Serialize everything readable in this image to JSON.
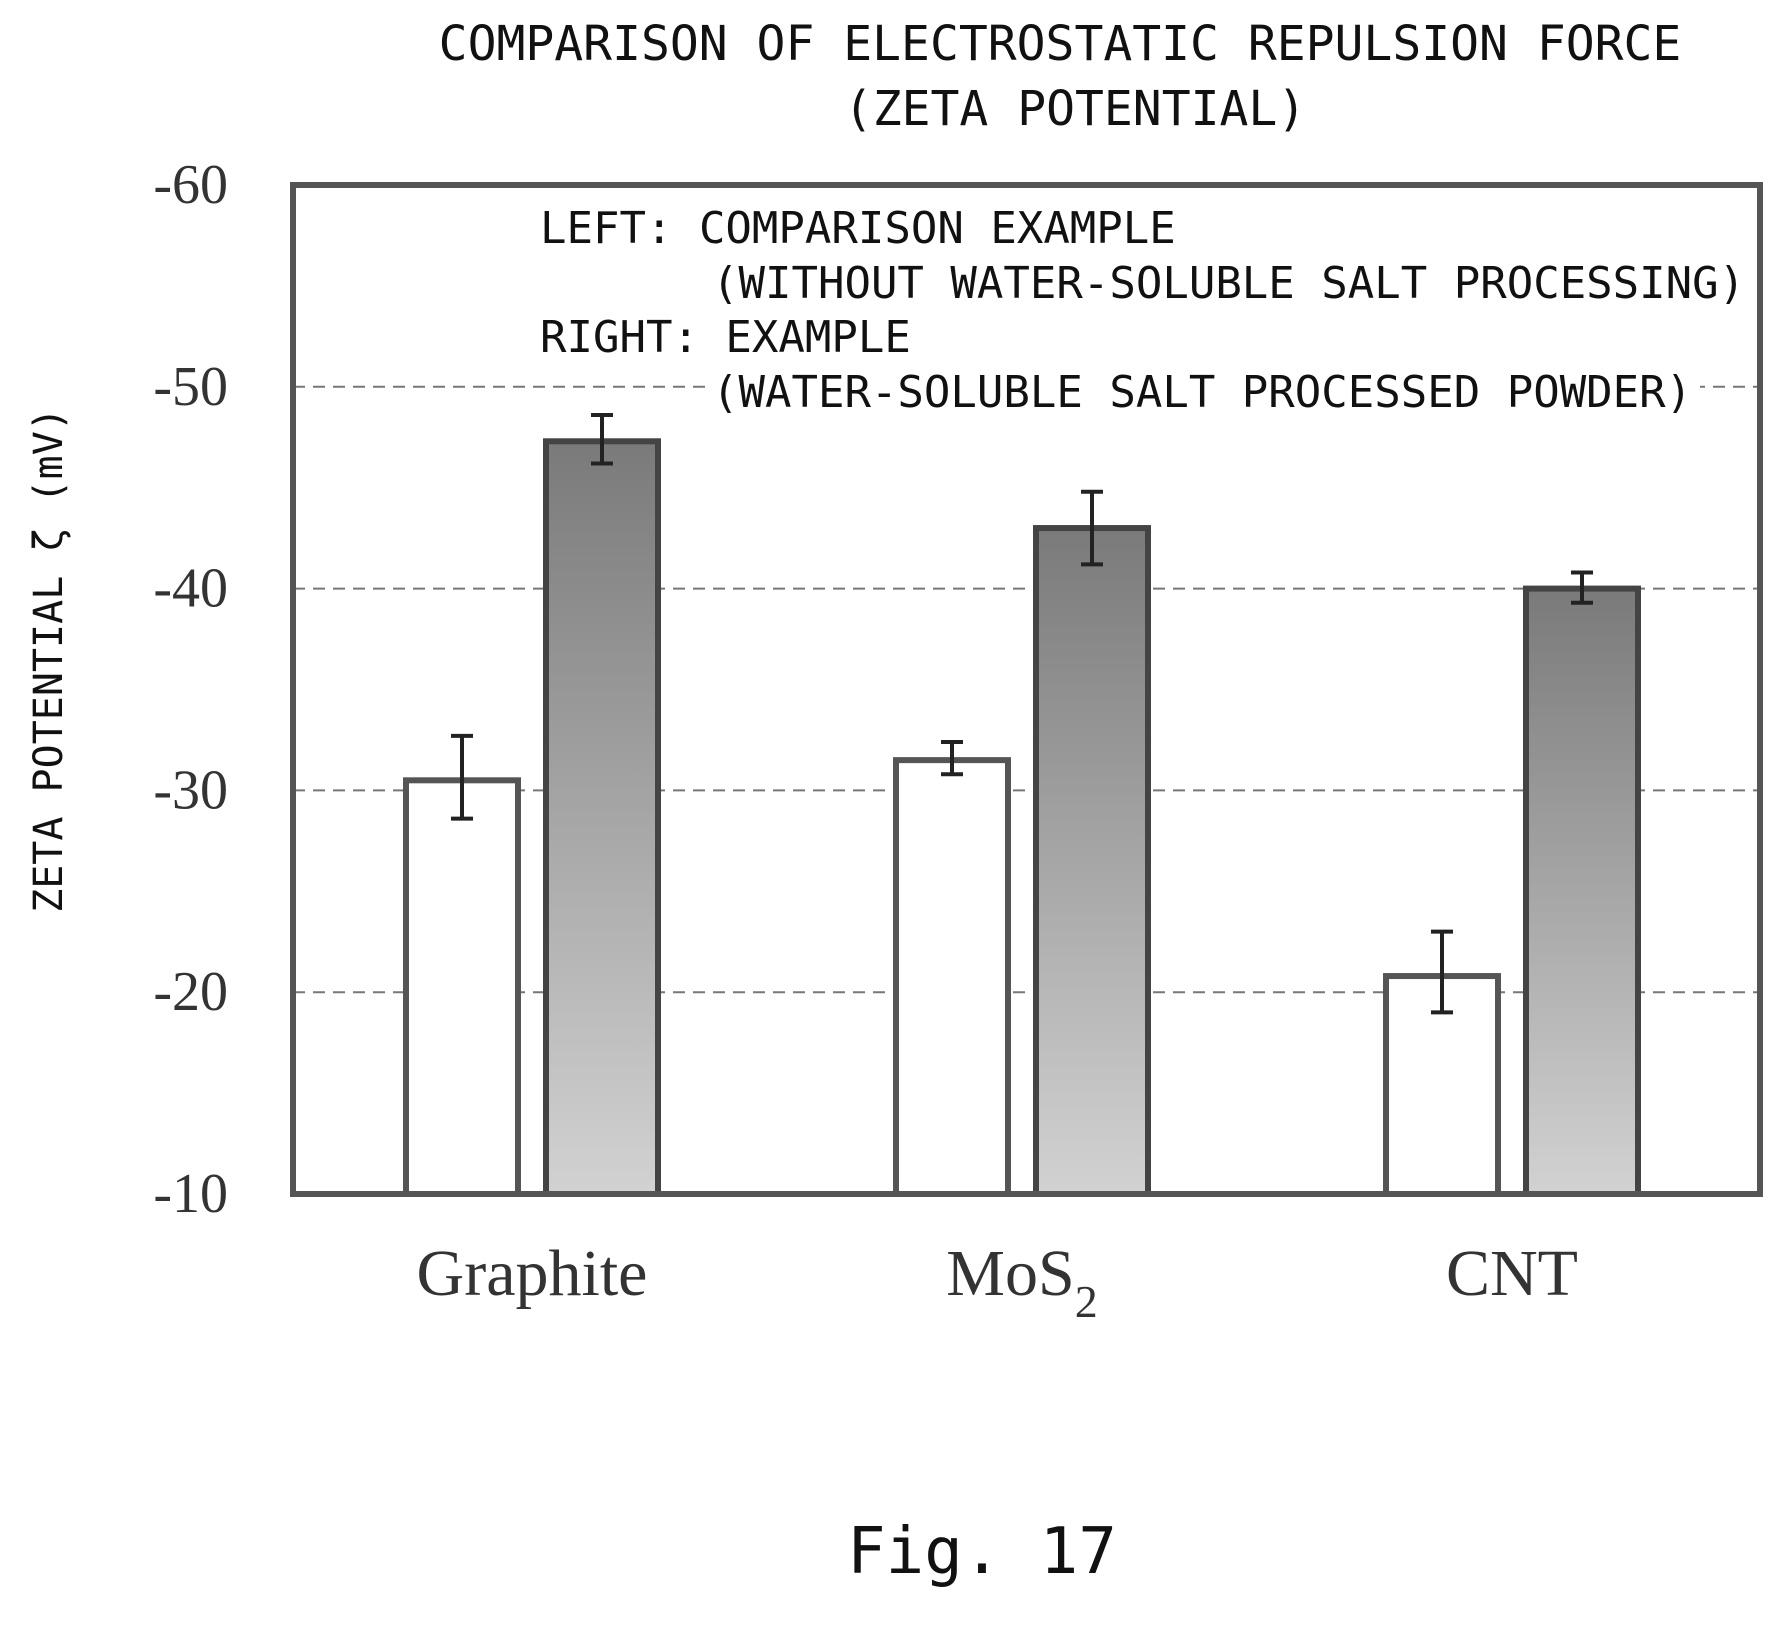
{
  "chart_data": {
    "type": "bar",
    "title": "COMPARISON OF ELECTROSTATIC REPULSION FORCE",
    "subtitle": "(ZETA POTENTIAL)",
    "ylabel": "ZETA POTENTIAL ζ (mV)",
    "xlabel": "",
    "figure_label": "Fig. 17",
    "categories": [
      {
        "text": "Graphite",
        "subscript": ""
      },
      {
        "text": "MoS",
        "subscript": "2"
      },
      {
        "text": "CNT",
        "subscript": ""
      }
    ],
    "ylim": [
      -10,
      -60
    ],
    "yticks": [
      -10,
      -20,
      -30,
      -40,
      -50,
      -60
    ],
    "ytick_labels": [
      "-10",
      "-20",
      "-30",
      "-40",
      "-50",
      "-60"
    ],
    "grid": "horizontal dashed at -20, -30, -40, -50",
    "series": [
      {
        "values": [
          -30.5,
          -31.5,
          -20.8
        ],
        "error_bars": [
          [
            -28.6,
            -32.7
          ],
          [
            -30.8,
            -32.4
          ],
          [
            -19.0,
            -23.0
          ]
        ],
        "fill": "#ffffff",
        "stroke": "#555555"
      },
      {
        "values": [
          -47.3,
          -43.0,
          -40.0
        ],
        "error_bars": [
          [
            -46.2,
            -48.6
          ],
          [
            -41.2,
            -44.8
          ],
          [
            -39.3,
            -40.8
          ]
        ],
        "fill_top": "#7a7a7a",
        "fill_bottom": "#d2d2d2",
        "stroke": "#444444"
      }
    ],
    "legend": {
      "placement": "top",
      "lines": [
        "LEFT: COMPARISON EXAMPLE",
        "(WITHOUT WATER-SOLUBLE SALT PROCESSING)",
        "RIGHT: EXAMPLE",
        "(WATER-SOLUBLE SALT PROCESSED POWDER)"
      ]
    }
  }
}
